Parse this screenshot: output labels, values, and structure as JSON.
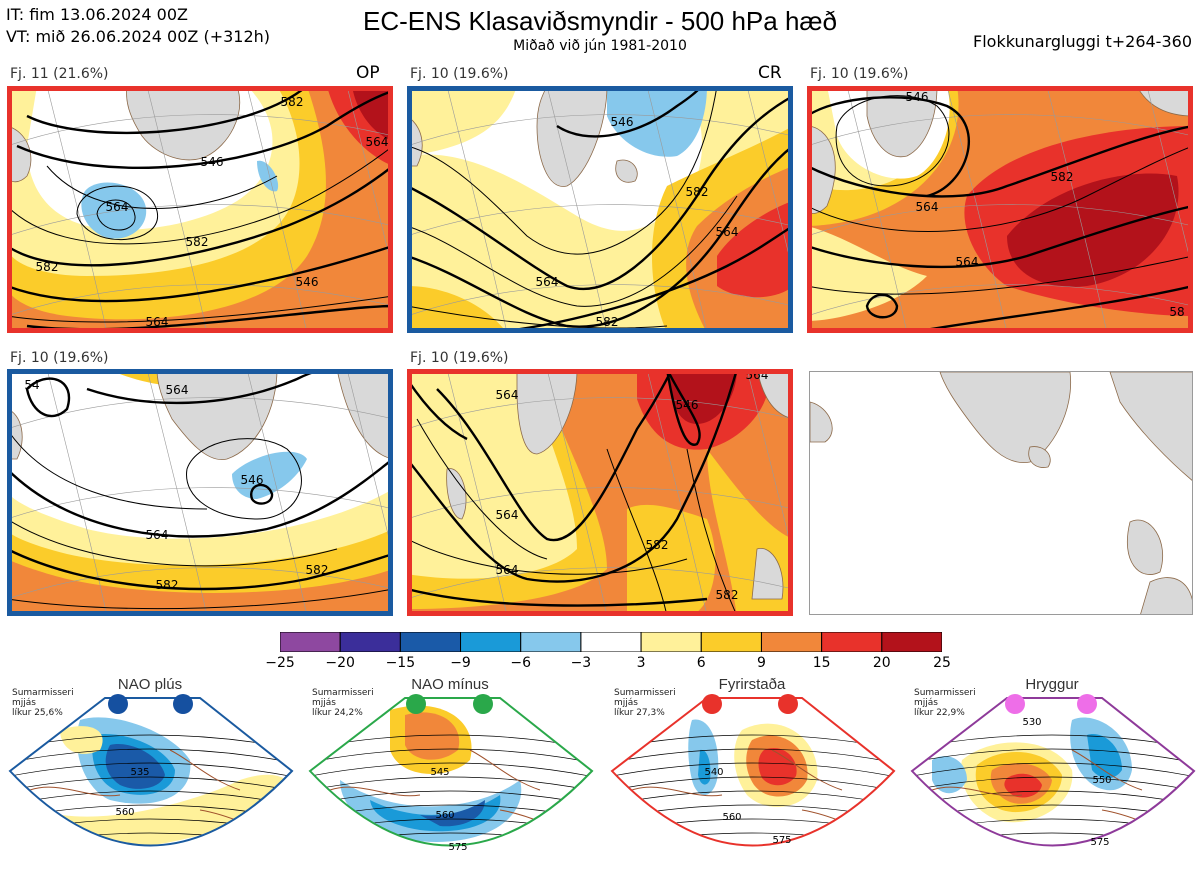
{
  "header": {
    "it_line": "IT: fim 13.06.2024 00Z",
    "vt_line": "VT: mið 26.06.2024 00Z  (+312h)",
    "title": "EC-ENS Klasaviðsmyndir - 500 hPa hæð",
    "subtitle": "Miðað við jún 1981-2010",
    "window": "Flokkunargluggi t+264-360"
  },
  "panels": [
    {
      "label": "Fj. 11 (21.6%)",
      "tag": "OP",
      "border": "#e8322b",
      "contours": [
        "546",
        "564",
        "582",
        "546",
        "564",
        "582",
        "564",
        "582"
      ]
    },
    {
      "label": "Fj. 10 (19.6%)",
      "tag": "CR",
      "border": "#1a5aa0",
      "contours": [
        "546",
        "564",
        "582",
        "564",
        "582"
      ]
    },
    {
      "label": "Fj. 10 (19.6%)",
      "tag": "",
      "border": "#e8322b",
      "contours": [
        "546",
        "564",
        "582",
        "564",
        "58"
      ]
    },
    {
      "label": "Fj. 10 (19.6%)",
      "tag": "",
      "border": "#1a5aa0",
      "contours": [
        "564",
        "546",
        "564",
        "582",
        "582",
        "54"
      ]
    },
    {
      "label": "Fj. 10 (19.6%)",
      "tag": "",
      "border": "#e8322b",
      "contours": [
        "564",
        "546",
        "564",
        "582",
        "564",
        "582",
        "564"
      ]
    }
  ],
  "colorbar": {
    "ticks": [
      "−25",
      "−20",
      "−15",
      "−9",
      "−6",
      "−3",
      "3",
      "6",
      "9",
      "15",
      "20",
      "25"
    ],
    "colors": [
      "#8e48a0",
      "#3b2e9a",
      "#1a5aa8",
      "#1a9ad8",
      "#86c8ec",
      "#ffffff",
      "#fff19a",
      "#fbcc2a",
      "#f1873a",
      "#e8322b",
      "#b3121b"
    ]
  },
  "regimes": [
    {
      "title": "NAO plús",
      "note": [
        "Sumarmisseri",
        "mjjás",
        "líkur 25,6%"
      ],
      "color": "#1a5aa0",
      "dot": "#1550a0",
      "contours": [
        "535",
        "560"
      ]
    },
    {
      "title": "NAO mínus",
      "note": [
        "Sumarmisseri",
        "mjjás",
        "líkur 24,2%"
      ],
      "color": "#2aa84a",
      "dot": "#2aa84a",
      "contours": [
        "545",
        "560",
        "575"
      ]
    },
    {
      "title": "Fyrirstaða",
      "note": [
        "Sumarmisseri",
        "mjjás",
        "líkur 27,3%"
      ],
      "color": "#e8322b",
      "dot": "#e8322b",
      "contours": [
        "540",
        "560",
        "575"
      ]
    },
    {
      "title": "Hryggur",
      "note": [
        "Sumarmisseri",
        "mjjás",
        "líkur 22,9%"
      ],
      "color": "#8e3a9a",
      "dot": "#ee6ee8",
      "contours": [
        "530",
        "550",
        "575"
      ]
    }
  ],
  "chart_data": {
    "type": "heatmap",
    "title": "EC-ENS Klasaviðsmyndir - 500 hPa hæð",
    "subtitle": "Miðað við jún 1981-2010",
    "colorbar_ticks": [
      -25,
      -20,
      -15,
      -9,
      -6,
      -3,
      3,
      6,
      9,
      15,
      20,
      25
    ],
    "clusters": [
      {
        "label": "Fj. 11 (21.6%)",
        "percent": 21.6,
        "members": 11,
        "tag": "OP"
      },
      {
        "label": "Fj. 10 (19.6%)",
        "percent": 19.6,
        "members": 10,
        "tag": "CR"
      },
      {
        "label": "Fj. 10 (19.6%)",
        "percent": 19.6,
        "members": 10,
        "tag": ""
      },
      {
        "label": "Fj. 10 (19.6%)",
        "percent": 19.6,
        "members": 10,
        "tag": ""
      },
      {
        "label": "Fj. 10 (19.6%)",
        "percent": 19.6,
        "members": 10,
        "tag": ""
      }
    ],
    "regimes": [
      {
        "name": "NAO plús",
        "probability": 25.6
      },
      {
        "name": "NAO mínus",
        "probability": 24.2
      },
      {
        "name": "Fyrirstaða",
        "probability": 27.3
      },
      {
        "name": "Hryggur",
        "probability": 22.9
      }
    ]
  }
}
